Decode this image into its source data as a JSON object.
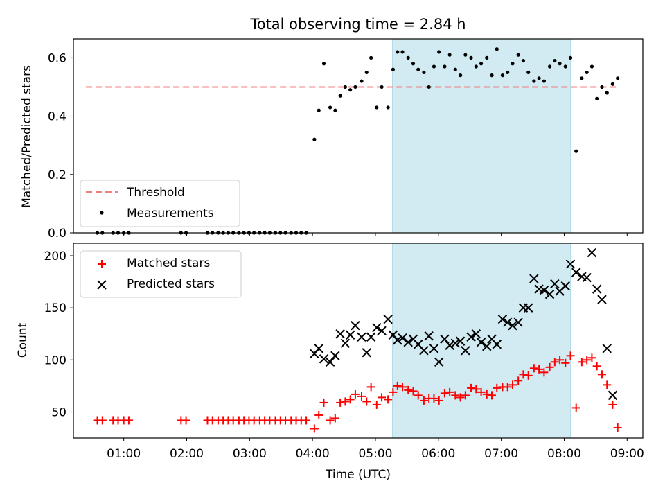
{
  "title": "Total observing time = 2.84 h",
  "colors": {
    "threshold": "#f08080",
    "measurement": "#000000",
    "matched": "#ff0000",
    "predicted": "#000000",
    "span_fill": "#add8e6"
  },
  "chart_data": [
    {
      "type": "scatter",
      "name": "top",
      "ylabel": "Matched/Predicted stars",
      "ylim": [
        0,
        0.665
      ],
      "yticks": [
        0,
        0.2,
        0.4,
        0.6
      ],
      "ytick_labels": [
        "0.0",
        "0.2",
        "0.4",
        "0.6"
      ],
      "xlim": [
        0.2,
        9.25
      ],
      "xticks": [
        1,
        2,
        3,
        4,
        5,
        6,
        7,
        8,
        9
      ],
      "span": [
        5.27,
        8.1
      ],
      "legend": {
        "position": "lower-left",
        "entries": [
          "Threshold",
          "Measurements"
        ]
      },
      "threshold": {
        "name": "Threshold",
        "y": 0.5,
        "x": [
          0.4,
          8.85
        ]
      },
      "measurements": {
        "name": "Measurements",
        "points": [
          [
            0.58,
            0
          ],
          [
            0.66,
            0
          ],
          [
            0.83,
            0
          ],
          [
            0.91,
            0
          ],
          [
            1.0,
            0
          ],
          [
            1.08,
            0
          ],
          [
            1.91,
            0
          ],
          [
            1.99,
            0
          ],
          [
            2.33,
            0
          ],
          [
            2.41,
            0
          ],
          [
            2.5,
            0
          ],
          [
            2.58,
            0
          ],
          [
            2.66,
            0
          ],
          [
            2.74,
            0
          ],
          [
            2.83,
            0
          ],
          [
            2.91,
            0
          ],
          [
            2.99,
            0
          ],
          [
            3.07,
            0
          ],
          [
            3.16,
            0
          ],
          [
            3.24,
            0
          ],
          [
            3.32,
            0
          ],
          [
            3.41,
            0
          ],
          [
            3.49,
            0
          ],
          [
            3.57,
            0
          ],
          [
            3.66,
            0
          ],
          [
            3.74,
            0
          ],
          [
            3.82,
            0
          ],
          [
            3.9,
            0
          ],
          [
            4.03,
            0.32
          ],
          [
            4.1,
            0.42
          ],
          [
            4.18,
            0.58
          ],
          [
            4.28,
            0.43
          ],
          [
            4.36,
            0.42
          ],
          [
            4.44,
            0.47
          ],
          [
            4.52,
            0.5
          ],
          [
            4.6,
            0.49
          ],
          [
            4.68,
            0.5
          ],
          [
            4.78,
            0.52
          ],
          [
            4.86,
            0.55
          ],
          [
            4.93,
            0.6
          ],
          [
            5.02,
            0.43
          ],
          [
            5.1,
            0.5
          ],
          [
            5.2,
            0.43
          ],
          [
            5.28,
            0.56
          ],
          [
            5.35,
            0.62
          ],
          [
            5.43,
            0.62
          ],
          [
            5.52,
            0.6
          ],
          [
            5.6,
            0.58
          ],
          [
            5.68,
            0.56
          ],
          [
            5.77,
            0.55
          ],
          [
            5.85,
            0.5
          ],
          [
            5.93,
            0.57
          ],
          [
            6.01,
            0.62
          ],
          [
            6.1,
            0.57
          ],
          [
            6.18,
            0.61
          ],
          [
            6.27,
            0.56
          ],
          [
            6.35,
            0.54
          ],
          [
            6.43,
            0.61
          ],
          [
            6.52,
            0.6
          ],
          [
            6.6,
            0.57
          ],
          [
            6.68,
            0.58
          ],
          [
            6.77,
            0.6
          ],
          [
            6.85,
            0.54
          ],
          [
            6.93,
            0.63
          ],
          [
            7.02,
            0.54
          ],
          [
            7.1,
            0.55
          ],
          [
            7.18,
            0.58
          ],
          [
            7.27,
            0.61
          ],
          [
            7.35,
            0.59
          ],
          [
            7.43,
            0.55
          ],
          [
            7.52,
            0.52
          ],
          [
            7.6,
            0.53
          ],
          [
            7.68,
            0.52
          ],
          [
            7.77,
            0.57
          ],
          [
            7.85,
            0.59
          ],
          [
            7.93,
            0.58
          ],
          [
            8.02,
            0.57
          ],
          [
            8.1,
            0.6
          ],
          [
            8.19,
            0.28
          ],
          [
            8.28,
            0.53
          ],
          [
            8.36,
            0.55
          ],
          [
            8.44,
            0.57
          ],
          [
            8.52,
            0.46
          ],
          [
            8.6,
            0.5
          ],
          [
            8.68,
            0.48
          ],
          [
            8.77,
            0.51
          ],
          [
            8.85,
            0.53
          ]
        ]
      }
    },
    {
      "type": "scatter",
      "name": "bottom",
      "ylabel": "Count",
      "xlabel": "Time (UTC)",
      "ylim": [
        25,
        212
      ],
      "yticks": [
        50,
        100,
        150,
        200
      ],
      "ytick_labels": [
        "50",
        "100",
        "150",
        "200"
      ],
      "xlim": [
        0.2,
        9.25
      ],
      "xticks": [
        1,
        2,
        3,
        4,
        5,
        6,
        7,
        8,
        9
      ],
      "xtick_labels": [
        "01:00",
        "02:00",
        "03:00",
        "04:00",
        "05:00",
        "06:00",
        "07:00",
        "08:00",
        "09:00"
      ],
      "span": [
        5.27,
        8.1
      ],
      "legend": {
        "position": "upper-left",
        "entries": [
          "Matched stars",
          "Predicted stars"
        ]
      },
      "matched": {
        "name": "Matched stars",
        "points": [
          [
            0.58,
            42
          ],
          [
            0.66,
            42
          ],
          [
            0.83,
            42
          ],
          [
            0.91,
            42
          ],
          [
            1.0,
            42
          ],
          [
            1.08,
            42
          ],
          [
            1.91,
            42
          ],
          [
            1.99,
            42
          ],
          [
            2.33,
            42
          ],
          [
            2.41,
            42
          ],
          [
            2.5,
            42
          ],
          [
            2.58,
            42
          ],
          [
            2.66,
            42
          ],
          [
            2.74,
            42
          ],
          [
            2.83,
            42
          ],
          [
            2.91,
            42
          ],
          [
            2.99,
            42
          ],
          [
            3.07,
            42
          ],
          [
            3.16,
            42
          ],
          [
            3.24,
            42
          ],
          [
            3.32,
            42
          ],
          [
            3.41,
            42
          ],
          [
            3.49,
            42
          ],
          [
            3.57,
            42
          ],
          [
            3.66,
            42
          ],
          [
            3.74,
            42
          ],
          [
            3.82,
            42
          ],
          [
            3.9,
            42
          ],
          [
            4.03,
            34
          ],
          [
            4.1,
            47
          ],
          [
            4.18,
            59
          ],
          [
            4.28,
            42
          ],
          [
            4.36,
            44
          ],
          [
            4.44,
            59
          ],
          [
            4.52,
            60
          ],
          [
            4.6,
            62
          ],
          [
            4.68,
            67
          ],
          [
            4.78,
            65
          ],
          [
            4.86,
            60
          ],
          [
            4.93,
            74
          ],
          [
            5.02,
            57
          ],
          [
            5.1,
            64
          ],
          [
            5.2,
            62
          ],
          [
            5.28,
            69
          ],
          [
            5.35,
            75
          ],
          [
            5.43,
            74
          ],
          [
            5.52,
            71
          ],
          [
            5.6,
            70
          ],
          [
            5.68,
            66
          ],
          [
            5.77,
            61
          ],
          [
            5.85,
            63
          ],
          [
            5.93,
            63
          ],
          [
            6.01,
            61
          ],
          [
            6.1,
            68
          ],
          [
            6.18,
            69
          ],
          [
            6.27,
            66
          ],
          [
            6.35,
            64
          ],
          [
            6.43,
            66
          ],
          [
            6.52,
            73
          ],
          [
            6.6,
            72
          ],
          [
            6.68,
            69
          ],
          [
            6.77,
            67
          ],
          [
            6.85,
            66
          ],
          [
            6.93,
            73
          ],
          [
            7.02,
            74
          ],
          [
            7.1,
            74
          ],
          [
            7.18,
            76
          ],
          [
            7.27,
            80
          ],
          [
            7.35,
            86
          ],
          [
            7.43,
            85
          ],
          [
            7.52,
            92
          ],
          [
            7.6,
            91
          ],
          [
            7.68,
            88
          ],
          [
            7.77,
            93
          ],
          [
            7.85,
            98
          ],
          [
            7.93,
            100
          ],
          [
            8.02,
            97
          ],
          [
            8.1,
            104
          ],
          [
            8.19,
            54
          ],
          [
            8.28,
            98
          ],
          [
            8.36,
            100
          ],
          [
            8.44,
            102
          ],
          [
            8.52,
            94
          ],
          [
            8.6,
            86
          ],
          [
            8.68,
            76
          ],
          [
            8.77,
            57
          ],
          [
            8.85,
            35
          ]
        ]
      },
      "predicted": {
        "name": "Predicted stars",
        "points": [
          [
            4.03,
            106
          ],
          [
            4.1,
            111
          ],
          [
            4.18,
            101
          ],
          [
            4.28,
            98
          ],
          [
            4.36,
            104
          ],
          [
            4.44,
            125
          ],
          [
            4.52,
            116
          ],
          [
            4.6,
            124
          ],
          [
            4.68,
            133
          ],
          [
            4.78,
            122
          ],
          [
            4.86,
            107
          ],
          [
            4.93,
            122
          ],
          [
            5.02,
            131
          ],
          [
            5.1,
            128
          ],
          [
            5.2,
            139
          ],
          [
            5.28,
            124
          ],
          [
            5.35,
            119
          ],
          [
            5.43,
            121
          ],
          [
            5.52,
            117
          ],
          [
            5.6,
            120
          ],
          [
            5.68,
            115
          ],
          [
            5.77,
            109
          ],
          [
            5.85,
            123
          ],
          [
            5.93,
            111
          ],
          [
            6.01,
            98
          ],
          [
            6.1,
            120
          ],
          [
            6.18,
            114
          ],
          [
            6.27,
            116
          ],
          [
            6.35,
            118
          ],
          [
            6.43,
            109
          ],
          [
            6.52,
            122
          ],
          [
            6.6,
            125
          ],
          [
            6.68,
            117
          ],
          [
            6.77,
            113
          ],
          [
            6.85,
            120
          ],
          [
            6.93,
            115
          ],
          [
            7.02,
            139
          ],
          [
            7.1,
            136
          ],
          [
            7.18,
            133
          ],
          [
            7.27,
            136
          ],
          [
            7.35,
            150
          ],
          [
            7.43,
            150
          ],
          [
            7.52,
            178
          ],
          [
            7.6,
            168
          ],
          [
            7.68,
            167
          ],
          [
            7.77,
            163
          ],
          [
            7.85,
            173
          ],
          [
            7.93,
            166
          ],
          [
            8.02,
            171
          ],
          [
            8.1,
            192
          ],
          [
            8.19,
            184
          ],
          [
            8.28,
            180
          ],
          [
            8.36,
            179
          ],
          [
            8.44,
            203
          ],
          [
            8.52,
            168
          ],
          [
            8.6,
            158
          ],
          [
            8.68,
            111
          ],
          [
            8.77,
            66
          ]
        ]
      }
    }
  ]
}
